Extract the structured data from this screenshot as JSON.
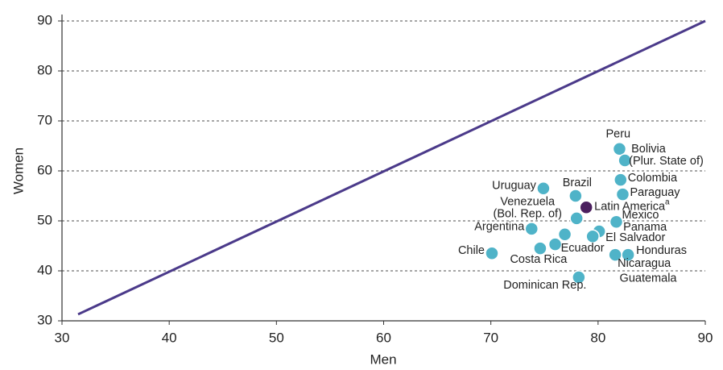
{
  "chart_data": {
    "type": "scatter",
    "x_label": "Men",
    "y_label": "Women",
    "xlim": [
      30,
      90
    ],
    "ylim": [
      30,
      90
    ],
    "xticks": [
      30,
      40,
      50,
      60,
      70,
      80,
      90
    ],
    "yticks": [
      30,
      40,
      50,
      60,
      70,
      80,
      90
    ],
    "grid": true,
    "reference_line": {
      "color": "#4b3a8a",
      "x": [
        31.5,
        90
      ],
      "y": [
        31.3,
        90
      ]
    },
    "points": [
      {
        "label": [
          "Peru"
        ],
        "x": 82.0,
        "y": 64.4,
        "color": "#4fb3c8"
      },
      {
        "label": [
          "Bolivia",
          "(Plur. State of)"
        ],
        "x": 82.5,
        "y": 62.1,
        "color": "#4fb3c8"
      },
      {
        "label": [
          "Colombia"
        ],
        "x": 82.1,
        "y": 58.2,
        "color": "#4fb3c8"
      },
      {
        "label": [
          "Paraguay"
        ],
        "x": 82.3,
        "y": 55.3,
        "color": "#4fb3c8"
      },
      {
        "label": [
          "Uruguay"
        ],
        "x": 74.9,
        "y": 56.5,
        "color": "#4fb3c8"
      },
      {
        "label": [
          "Brazil"
        ],
        "x": 77.9,
        "y": 55.0,
        "color": "#4fb3c8"
      },
      {
        "label": [
          "Latin America",
          "a"
        ],
        "x": 78.9,
        "y": 52.7,
        "color": "#4b1f5e"
      },
      {
        "label": [
          "Venezuela",
          "(Bol. Rep. of)"
        ],
        "x": 78.0,
        "y": 50.5,
        "color": "#4fb3c8"
      },
      {
        "label": [
          "Mexico"
        ],
        "x": 81.7,
        "y": 49.8,
        "color": "#4fb3c8"
      },
      {
        "label": [
          "Argentina"
        ],
        "x": 73.8,
        "y": 48.4,
        "color": "#4fb3c8"
      },
      {
        "label": [
          "Panama"
        ],
        "x": 80.1,
        "y": 47.9,
        "color": "#4fb3c8"
      },
      {
        "label": [
          "El Salvador"
        ],
        "x": 79.5,
        "y": 46.9,
        "color": "#4fb3c8"
      },
      {
        "label": [
          "Ecuador"
        ],
        "x": 76.0,
        "y": 45.3,
        "color": "#4fb3c8"
      },
      {
        "label": [
          "Costa Rica"
        ],
        "x": 74.6,
        "y": 44.5,
        "color": "#4fb3c8"
      },
      {
        "label": [
          "Guatemala"
        ],
        "x": 76.9,
        "y": 47.3,
        "color": "#4fb3c8"
      },
      {
        "label": [
          "Honduras"
        ],
        "x": 82.8,
        "y": 43.2,
        "color": "#4fb3c8"
      },
      {
        "label": [
          "Nicaragua"
        ],
        "x": 81.6,
        "y": 43.2,
        "color": "#4fb3c8"
      },
      {
        "label": [
          "Dominican Rep."
        ],
        "x": 78.2,
        "y": 38.7,
        "color": "#4fb3c8"
      },
      {
        "label": [
          "Chile"
        ],
        "x": 70.1,
        "y": 43.5,
        "color": "#4fb3c8"
      }
    ]
  }
}
